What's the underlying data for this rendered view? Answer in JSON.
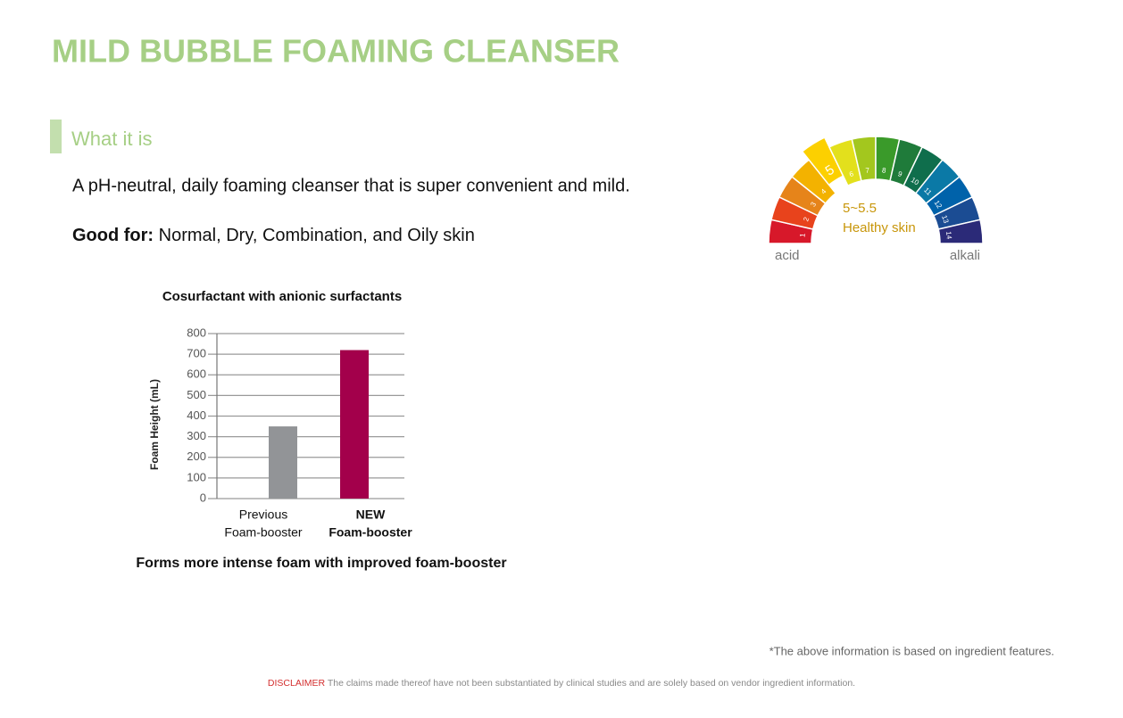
{
  "header": {
    "title": "MILD BUBBLE FOAMING CLEANSER"
  },
  "section": {
    "heading": "What it is",
    "description": "A pH-neutral, daily foaming cleanser that is super convenient and mild.",
    "good_for_label": "Good for:",
    "good_for": "Normal, Dry, Combination, and Oily skin"
  },
  "chart_data": {
    "type": "bar",
    "title": "Cosurfactant with anionic surfactants",
    "y_label": "Foam Height (mL)",
    "categories": [
      [
        "Previous",
        "Foam-booster"
      ],
      [
        "NEW",
        "Foam-booster"
      ]
    ],
    "values": [
      350,
      720
    ],
    "colors": [
      "#929497",
      "#a3004b"
    ],
    "ylim": [
      0,
      800
    ],
    "yticks": [
      0,
      100,
      200,
      300,
      400,
      500,
      600,
      700,
      800
    ],
    "grid": true,
    "caption": "Forms more intense foam with improved foam-booster"
  },
  "ph_scale": {
    "levels": [
      1,
      2,
      3,
      4,
      5,
      6,
      7,
      8,
      9,
      10,
      11,
      12,
      13,
      14
    ],
    "colors": [
      "#d7182a",
      "#e8431c",
      "#e6841a",
      "#f3b200",
      "#fcd000",
      "#e3e01c",
      "#a3c71e",
      "#3a9a2a",
      "#1f7b3a",
      "#0f6e4c",
      "#0b79a6",
      "#0062aa",
      "#1b4c93",
      "#2b2a78"
    ],
    "highlight": 5,
    "range_label": "5~5.5",
    "range_note": "Healthy skin",
    "left_label": "acid",
    "right_label": "alkali"
  },
  "footer": {
    "note": "*The above information is based on ingredient features.",
    "disclaimer_label": "DISCLAIMER",
    "disclaimer": "The claims made thereof have not been substantiated by clinical studies and are solely based on vendor ingredient information."
  }
}
